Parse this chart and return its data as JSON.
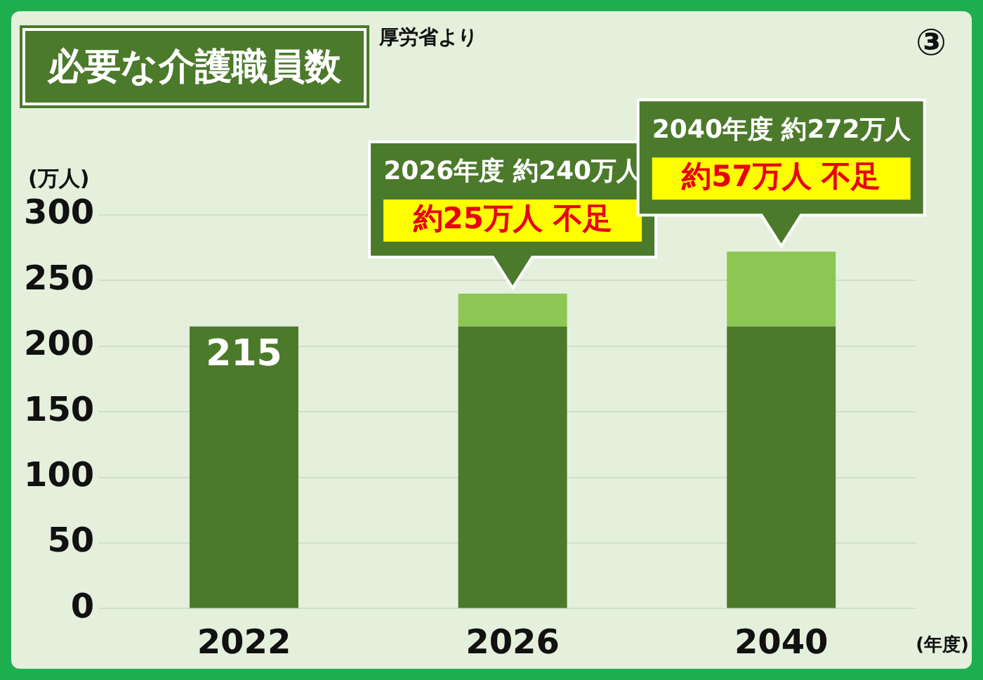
{
  "chart_data": {
    "type": "bar",
    "title": "必要な介護職員数",
    "subtitle": "厚労省より",
    "ylabel": "(万人)",
    "xlabel": "(年度)",
    "categories": [
      "2022",
      "2026",
      "2040"
    ],
    "stacked": true,
    "series": [
      {
        "color": "#4b7a2b",
        "values": [
          215,
          215,
          215
        ],
        "value_labels": [
          "215",
          null,
          null
        ]
      },
      {
        "color": "#8cc653",
        "values": [
          null,
          25,
          57
        ]
      }
    ],
    "ylim": [
      0,
      300
    ],
    "yticks": [
      0,
      50,
      100,
      150,
      200,
      250,
      300
    ],
    "grid": "y",
    "annotations": [
      "③",
      "2026年度 約240万人",
      "約25万人 不足",
      "2040年度 約272万人",
      "約57万人 不足"
    ]
  }
}
